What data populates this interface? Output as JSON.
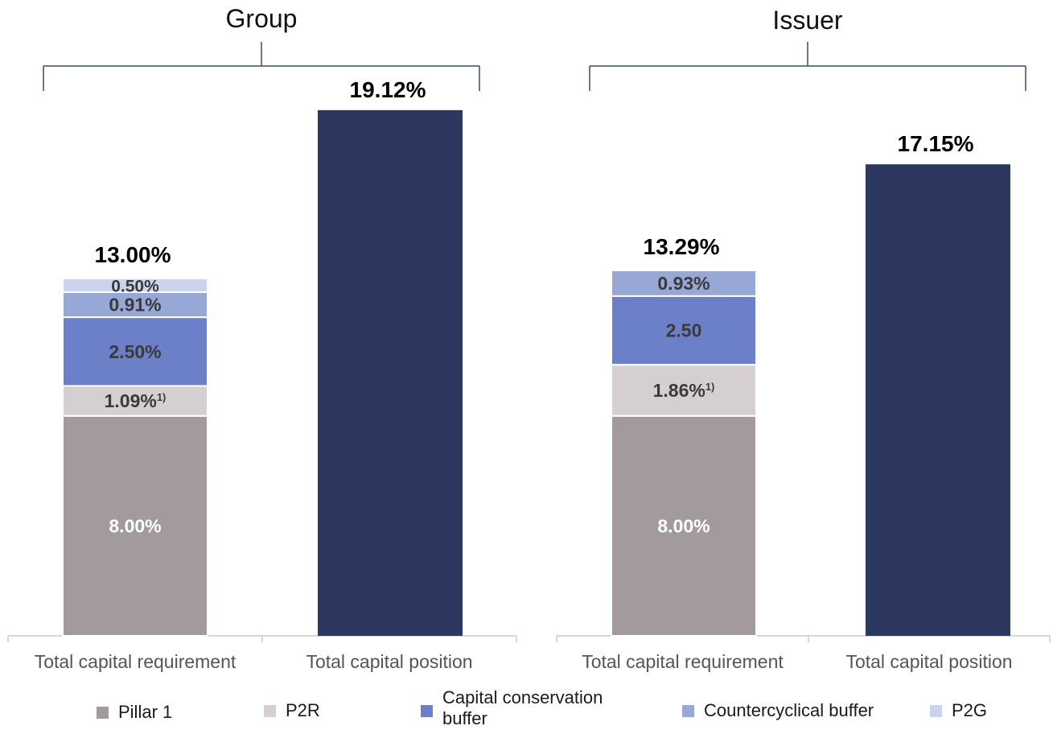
{
  "colors": {
    "pillar1": "#a39aa0",
    "p2r": "#d6cfd2",
    "ccb": "#6b80c8",
    "ccyb": "#97a7d6",
    "p2g": "#cbd3ee",
    "position": "#2c3860",
    "axis": "#c8c8c8",
    "bracket": "#3a4a6b"
  },
  "legend": [
    {
      "key": "pillar1",
      "label": "Pillar 1"
    },
    {
      "key": "p2r",
      "label": "P2R"
    },
    {
      "key": "ccb",
      "label": "Capital conservation buffer"
    },
    {
      "key": "ccyb",
      "label": "Countercyclical buffer"
    },
    {
      "key": "p2g",
      "label": "P2G"
    }
  ],
  "chart_data": [
    {
      "type": "bar",
      "title": "Group",
      "categories": [
        "Total capital requirement",
        "Total capital position"
      ],
      "ylim": [
        0,
        22
      ],
      "stacked_series": [
        {
          "key": "pillar1",
          "name": "Pillar 1",
          "values": [
            8.0,
            null
          ],
          "labels": [
            "8.00%",
            ""
          ]
        },
        {
          "key": "p2r",
          "name": "P2R",
          "values": [
            1.09,
            null
          ],
          "labels": [
            "1.09%",
            ""
          ],
          "footnote": "1)"
        },
        {
          "key": "ccb",
          "name": "Capital conservation buffer",
          "values": [
            2.5,
            null
          ],
          "labels": [
            "2.50%",
            ""
          ]
        },
        {
          "key": "ccyb",
          "name": "Countercyclical buffer",
          "values": [
            0.91,
            null
          ],
          "labels": [
            "0.91%",
            ""
          ]
        },
        {
          "key": "p2g",
          "name": "P2G",
          "values": [
            0.5,
            null
          ],
          "labels": [
            "0.50%",
            ""
          ]
        }
      ],
      "position": {
        "value": 19.12,
        "label": "19.12%"
      },
      "total": {
        "value": 13.0,
        "label": "13.00%"
      }
    },
    {
      "type": "bar",
      "title": "Issuer",
      "categories": [
        "Total capital requirement",
        "Total capital position"
      ],
      "ylim": [
        0,
        22
      ],
      "stacked_series": [
        {
          "key": "pillar1",
          "name": "Pillar 1",
          "values": [
            8.0,
            null
          ],
          "labels": [
            "8.00%",
            ""
          ]
        },
        {
          "key": "p2r",
          "name": "P2R",
          "values": [
            1.86,
            null
          ],
          "labels": [
            "1.86%",
            ""
          ],
          "footnote": "1)"
        },
        {
          "key": "ccb",
          "name": "Capital conservation buffer",
          "values": [
            2.5,
            null
          ],
          "labels": [
            "2.50",
            ""
          ]
        },
        {
          "key": "ccyb",
          "name": "Countercyclical buffer",
          "values": [
            0.93,
            null
          ],
          "labels": [
            "0.93%",
            ""
          ]
        }
      ],
      "position": {
        "value": 17.15,
        "label": "17.15%"
      },
      "total": {
        "value": 13.29,
        "label": "13.29%"
      }
    }
  ]
}
